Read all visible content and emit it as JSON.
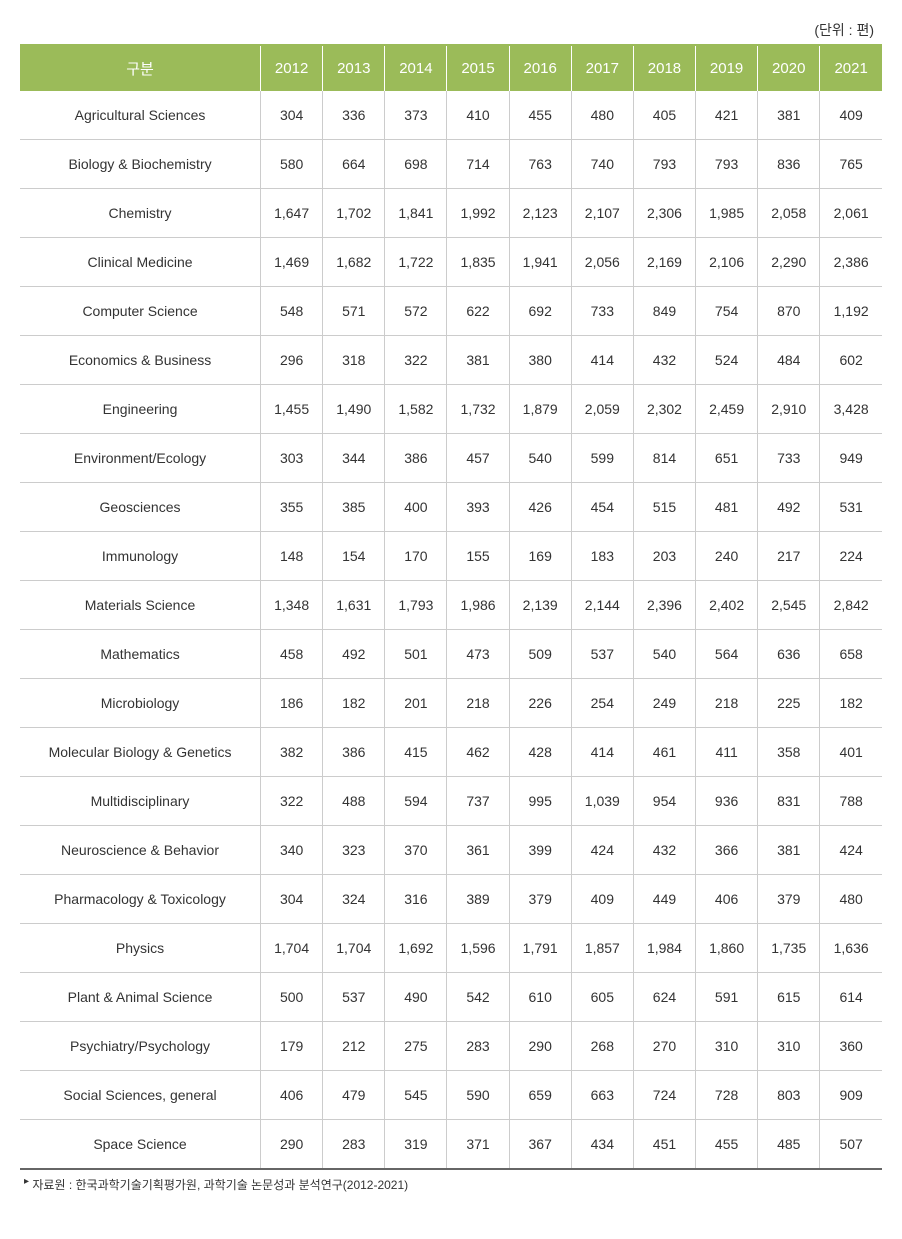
{
  "unit_label": "(단위 : 편)",
  "table": {
    "header_bg_color": "#9bbb59",
    "header_text_color": "#ffffff",
    "border_color": "#cccccc",
    "category_header": "구분",
    "year_headers": [
      "2012",
      "2013",
      "2014",
      "2015",
      "2016",
      "2017",
      "2018",
      "2019",
      "2020",
      "2021"
    ],
    "rows": [
      {
        "category": "Agricultural Sciences",
        "values": [
          "304",
          "336",
          "373",
          "410",
          "455",
          "480",
          "405",
          "421",
          "381",
          "409"
        ]
      },
      {
        "category": "Biology & Biochemistry",
        "values": [
          "580",
          "664",
          "698",
          "714",
          "763",
          "740",
          "793",
          "793",
          "836",
          "765"
        ]
      },
      {
        "category": "Chemistry",
        "values": [
          "1,647",
          "1,702",
          "1,841",
          "1,992",
          "2,123",
          "2,107",
          "2,306",
          "1,985",
          "2,058",
          "2,061"
        ]
      },
      {
        "category": "Clinical Medicine",
        "values": [
          "1,469",
          "1,682",
          "1,722",
          "1,835",
          "1,941",
          "2,056",
          "2,169",
          "2,106",
          "2,290",
          "2,386"
        ]
      },
      {
        "category": "Computer Science",
        "values": [
          "548",
          "571",
          "572",
          "622",
          "692",
          "733",
          "849",
          "754",
          "870",
          "1,192"
        ]
      },
      {
        "category": "Economics & Business",
        "values": [
          "296",
          "318",
          "322",
          "381",
          "380",
          "414",
          "432",
          "524",
          "484",
          "602"
        ]
      },
      {
        "category": "Engineering",
        "values": [
          "1,455",
          "1,490",
          "1,582",
          "1,732",
          "1,879",
          "2,059",
          "2,302",
          "2,459",
          "2,910",
          "3,428"
        ]
      },
      {
        "category": "Environment/Ecology",
        "values": [
          "303",
          "344",
          "386",
          "457",
          "540",
          "599",
          "814",
          "651",
          "733",
          "949"
        ]
      },
      {
        "category": "Geosciences",
        "values": [
          "355",
          "385",
          "400",
          "393",
          "426",
          "454",
          "515",
          "481",
          "492",
          "531"
        ]
      },
      {
        "category": "Immunology",
        "values": [
          "148",
          "154",
          "170",
          "155",
          "169",
          "183",
          "203",
          "240",
          "217",
          "224"
        ]
      },
      {
        "category": "Materials Science",
        "values": [
          "1,348",
          "1,631",
          "1,793",
          "1,986",
          "2,139",
          "2,144",
          "2,396",
          "2,402",
          "2,545",
          "2,842"
        ]
      },
      {
        "category": "Mathematics",
        "values": [
          "458",
          "492",
          "501",
          "473",
          "509",
          "537",
          "540",
          "564",
          "636",
          "658"
        ]
      },
      {
        "category": "Microbiology",
        "values": [
          "186",
          "182",
          "201",
          "218",
          "226",
          "254",
          "249",
          "218",
          "225",
          "182"
        ]
      },
      {
        "category": "Molecular Biology & Genetics",
        "values": [
          "382",
          "386",
          "415",
          "462",
          "428",
          "414",
          "461",
          "411",
          "358",
          "401"
        ]
      },
      {
        "category": "Multidisciplinary",
        "values": [
          "322",
          "488",
          "594",
          "737",
          "995",
          "1,039",
          "954",
          "936",
          "831",
          "788"
        ]
      },
      {
        "category": "Neuroscience & Behavior",
        "values": [
          "340",
          "323",
          "370",
          "361",
          "399",
          "424",
          "432",
          "366",
          "381",
          "424"
        ]
      },
      {
        "category": "Pharmacology & Toxicology",
        "values": [
          "304",
          "324",
          "316",
          "389",
          "379",
          "409",
          "449",
          "406",
          "379",
          "480"
        ]
      },
      {
        "category": "Physics",
        "values": [
          "1,704",
          "1,704",
          "1,692",
          "1,596",
          "1,791",
          "1,857",
          "1,984",
          "1,860",
          "1,735",
          "1,636"
        ]
      },
      {
        "category": "Plant & Animal Science",
        "values": [
          "500",
          "537",
          "490",
          "542",
          "610",
          "605",
          "624",
          "591",
          "615",
          "614"
        ]
      },
      {
        "category": "Psychiatry/Psychology",
        "values": [
          "179",
          "212",
          "275",
          "283",
          "290",
          "268",
          "270",
          "310",
          "310",
          "360"
        ]
      },
      {
        "category": "Social Sciences, general",
        "values": [
          "406",
          "479",
          "545",
          "590",
          "659",
          "663",
          "724",
          "728",
          "803",
          "909"
        ]
      },
      {
        "category": "Space Science",
        "values": [
          "290",
          "283",
          "319",
          "371",
          "367",
          "434",
          "451",
          "455",
          "485",
          "507"
        ]
      }
    ]
  },
  "footnote": {
    "marker": "▸",
    "label": "자료원 :",
    "text": "한국과학기술기획평가원, 과학기술 논문성과 분석연구(2012-2021)"
  }
}
